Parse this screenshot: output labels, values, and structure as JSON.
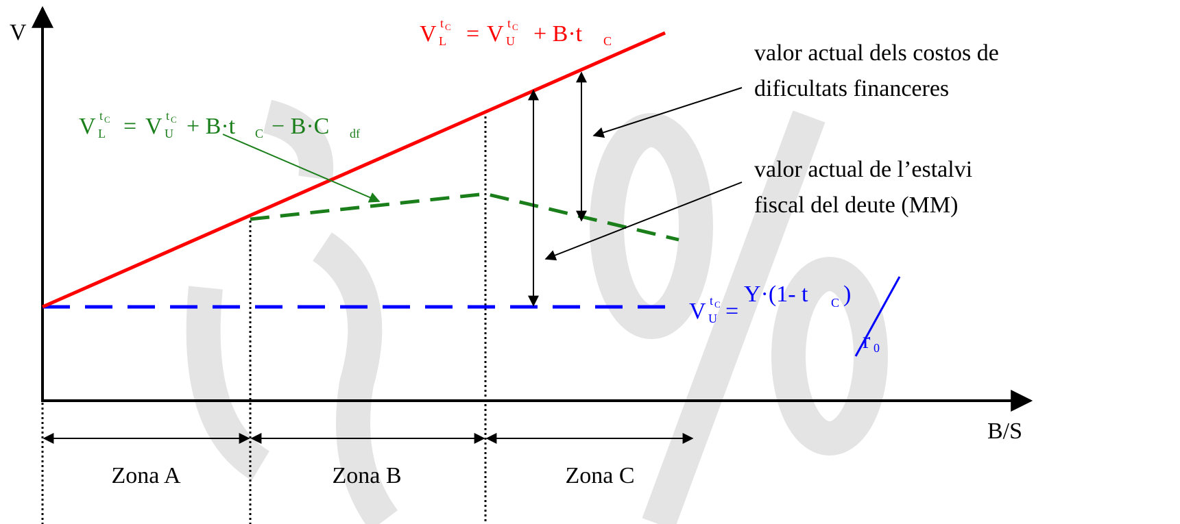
{
  "axes": {
    "y_label": "V",
    "x_label": "B/S"
  },
  "zones": [
    "Zona A",
    "Zona B",
    "Zona C"
  ],
  "equations": {
    "levered": [
      "V",
      "t",
      "C",
      "L",
      "=",
      "V",
      "t",
      "C",
      "U",
      "+ B·t",
      "C"
    ],
    "with_distress": [
      "V",
      "t",
      "C",
      "L",
      "=",
      "V",
      "t",
      "C",
      "U",
      "+ B·t",
      "C",
      "− B·C",
      "df"
    ],
    "unlevered": [
      "V",
      "t",
      "C",
      "U",
      "=",
      "Y·(1- t",
      "C",
      ")",
      "r",
      "0"
    ]
  },
  "annotations": {
    "distress_costs": [
      "valor actual dels costos de",
      "dificultats financeres"
    ],
    "tax_shield": [
      "valor actual de l’estalvi",
      "fiscal del deute (MM)"
    ]
  }
}
